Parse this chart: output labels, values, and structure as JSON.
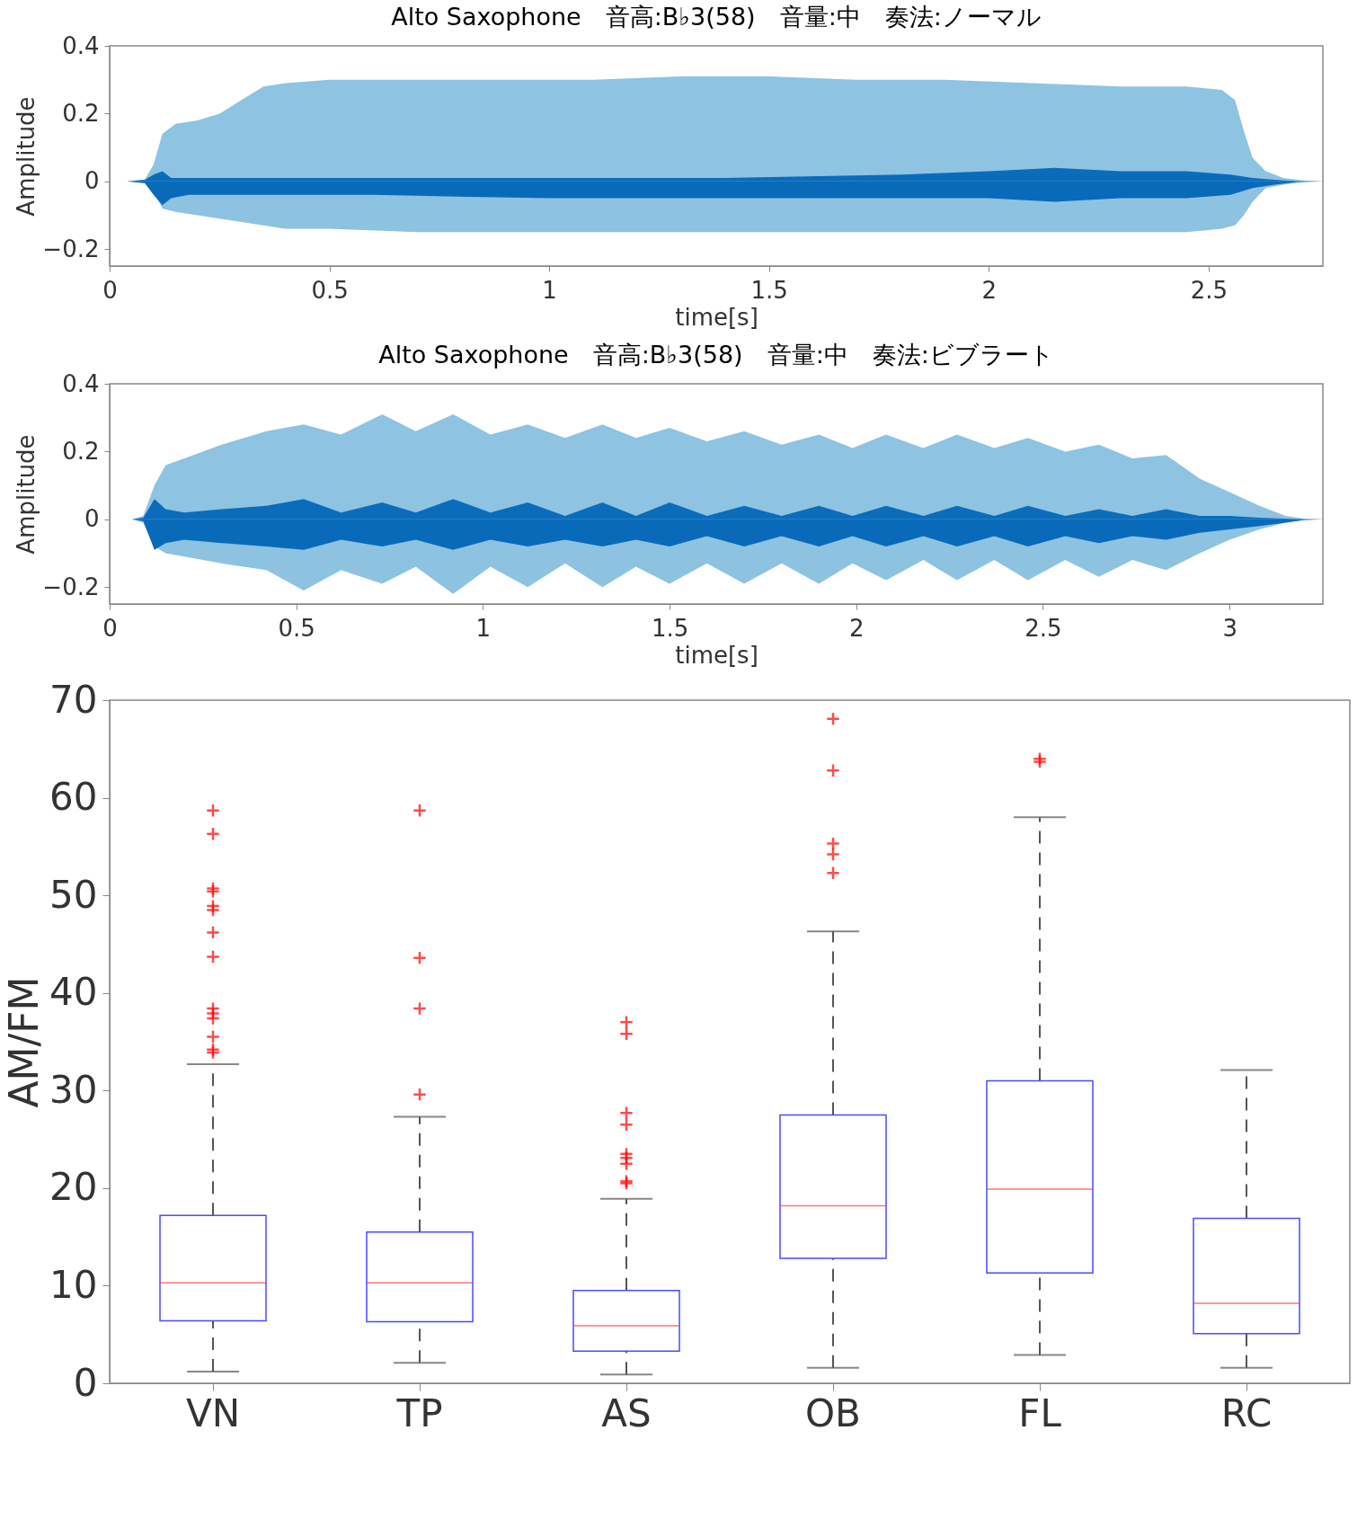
{
  "chart_data": [
    {
      "type": "area",
      "title": "Alto Saxophone　音高:B♭3(58)　音量:中　奏法:ノーマル",
      "xlabel": "time[s]",
      "ylabel": "Amplitude",
      "xlim": [
        0,
        2.76
      ],
      "xticks": [
        0,
        0.5,
        1,
        1.5,
        2,
        2.5
      ],
      "ylim": [
        -0.25,
        0.4
      ],
      "yticks": [
        -0.2,
        0,
        0.2,
        0.4
      ],
      "series": [
        {
          "color": "#8ec3e2",
          "x": [
            0,
            0.04,
            0.08,
            0.1,
            0.12,
            0.15,
            0.2,
            0.25,
            0.3,
            0.35,
            0.4,
            0.5,
            0.7,
            0.9,
            1.1,
            1.3,
            1.5,
            1.7,
            1.9,
            2.1,
            2.3,
            2.45,
            2.53,
            2.56,
            2.58,
            2.6,
            2.63,
            2.67,
            2.72,
            2.76
          ],
          "values": [
            0,
            0,
            0.005,
            0.05,
            0.14,
            0.17,
            0.18,
            0.2,
            0.24,
            0.28,
            0.29,
            0.3,
            0.3,
            0.3,
            0.3,
            0.31,
            0.31,
            0.3,
            0.3,
            0.29,
            0.28,
            0.28,
            0.27,
            0.24,
            0.15,
            0.07,
            0.03,
            0.01,
            0.002,
            0
          ]
        },
        {
          "color": "#8dc2e1",
          "x": [
            0,
            0.04,
            0.08,
            0.1,
            0.12,
            0.15,
            0.2,
            0.25,
            0.3,
            0.35,
            0.4,
            0.5,
            0.7,
            0.9,
            1.1,
            1.3,
            1.5,
            1.7,
            1.9,
            2.1,
            2.3,
            2.45,
            2.53,
            2.56,
            2.58,
            2.6,
            2.63,
            2.67,
            2.72,
            2.76
          ],
          "values": [
            0,
            0,
            -0.005,
            -0.03,
            -0.08,
            -0.09,
            -0.1,
            -0.11,
            -0.12,
            -0.13,
            -0.14,
            -0.14,
            -0.15,
            -0.15,
            -0.15,
            -0.15,
            -0.15,
            -0.15,
            -0.15,
            -0.15,
            -0.15,
            -0.15,
            -0.14,
            -0.13,
            -0.1,
            -0.06,
            -0.02,
            -0.01,
            -0.002,
            0
          ]
        },
        {
          "color": "#0b6cbb",
          "x": [
            0,
            0.04,
            0.08,
            0.1,
            0.12,
            0.14,
            0.18,
            0.3,
            0.6,
            1.0,
            1.4,
            1.8,
            2.0,
            2.15,
            2.3,
            2.45,
            2.55,
            2.6,
            2.65,
            2.7,
            2.76
          ],
          "values": [
            0,
            0,
            0.005,
            0.02,
            0.03,
            0.01,
            0.01,
            0.01,
            0.01,
            0.01,
            0.01,
            0.02,
            0.03,
            0.04,
            0.03,
            0.03,
            0.02,
            0.01,
            0.005,
            0.001,
            0
          ]
        },
        {
          "color": "#0a6aba",
          "x": [
            0,
            0.04,
            0.08,
            0.1,
            0.12,
            0.14,
            0.18,
            0.3,
            0.6,
            1.0,
            1.4,
            1.8,
            2.0,
            2.15,
            2.3,
            2.45,
            2.55,
            2.6,
            2.65,
            2.7,
            2.76
          ],
          "values": [
            0,
            0,
            -0.005,
            -0.04,
            -0.07,
            -0.05,
            -0.04,
            -0.04,
            -0.04,
            -0.05,
            -0.05,
            -0.05,
            -0.05,
            -0.06,
            -0.05,
            -0.05,
            -0.04,
            -0.02,
            -0.01,
            -0.002,
            0
          ]
        }
      ]
    },
    {
      "type": "area",
      "title": "Alto Saxophone　音高:B♭3(58)　音量:中　奏法:ビブラート",
      "xlabel": "time[s]",
      "ylabel": "Amplitude",
      "xlim": [
        0,
        3.25
      ],
      "xticks": [
        0,
        0.5,
        1,
        1.5,
        2,
        2.5,
        3
      ],
      "ylim": [
        -0.25,
        0.4
      ],
      "yticks": [
        -0.2,
        0,
        0.2,
        0.4
      ],
      "series": [
        {
          "color": "#8ec3e2",
          "x": [
            0,
            0.06,
            0.09,
            0.12,
            0.15,
            0.2,
            0.3,
            0.42,
            0.52,
            0.62,
            0.73,
            0.82,
            0.92,
            1.02,
            1.12,
            1.22,
            1.32,
            1.41,
            1.5,
            1.6,
            1.7,
            1.8,
            1.9,
            1.99,
            2.08,
            2.18,
            2.27,
            2.37,
            2.46,
            2.56,
            2.65,
            2.74,
            2.83,
            2.92,
            3.0,
            3.08,
            3.15,
            3.2,
            3.25
          ],
          "values": [
            0,
            0,
            0.01,
            0.1,
            0.16,
            0.18,
            0.22,
            0.26,
            0.28,
            0.25,
            0.31,
            0.26,
            0.31,
            0.25,
            0.28,
            0.24,
            0.28,
            0.24,
            0.27,
            0.23,
            0.26,
            0.22,
            0.25,
            0.21,
            0.25,
            0.21,
            0.25,
            0.21,
            0.24,
            0.2,
            0.22,
            0.18,
            0.19,
            0.12,
            0.08,
            0.04,
            0.01,
            0.002,
            0
          ]
        },
        {
          "color": "#8dc2e1",
          "x": [
            0,
            0.06,
            0.09,
            0.12,
            0.15,
            0.2,
            0.3,
            0.42,
            0.52,
            0.62,
            0.73,
            0.82,
            0.92,
            1.02,
            1.12,
            1.22,
            1.32,
            1.41,
            1.5,
            1.6,
            1.7,
            1.8,
            1.9,
            1.99,
            2.08,
            2.18,
            2.27,
            2.37,
            2.46,
            2.56,
            2.65,
            2.74,
            2.83,
            2.92,
            3.0,
            3.08,
            3.15,
            3.2,
            3.25
          ],
          "values": [
            0,
            0,
            -0.01,
            -0.08,
            -0.1,
            -0.11,
            -0.13,
            -0.15,
            -0.21,
            -0.15,
            -0.19,
            -0.14,
            -0.22,
            -0.14,
            -0.2,
            -0.13,
            -0.2,
            -0.14,
            -0.19,
            -0.13,
            -0.19,
            -0.13,
            -0.19,
            -0.13,
            -0.18,
            -0.12,
            -0.18,
            -0.12,
            -0.18,
            -0.12,
            -0.17,
            -0.12,
            -0.15,
            -0.1,
            -0.06,
            -0.03,
            -0.01,
            -0.002,
            0
          ]
        },
        {
          "color": "#0b6cbb",
          "x": [
            0,
            0.06,
            0.09,
            0.12,
            0.15,
            0.2,
            0.3,
            0.42,
            0.52,
            0.62,
            0.73,
            0.82,
            0.92,
            1.02,
            1.12,
            1.22,
            1.32,
            1.41,
            1.5,
            1.6,
            1.7,
            1.8,
            1.9,
            1.99,
            2.08,
            2.18,
            2.27,
            2.37,
            2.46,
            2.56,
            2.65,
            2.74,
            2.83,
            2.92,
            3.0,
            3.08,
            3.15,
            3.2,
            3.25
          ],
          "values": [
            0,
            0,
            0.005,
            0.06,
            0.03,
            0.02,
            0.03,
            0.04,
            0.06,
            0.02,
            0.05,
            0.02,
            0.06,
            0.02,
            0.05,
            0.01,
            0.05,
            0.01,
            0.05,
            0.01,
            0.04,
            0.01,
            0.04,
            0.01,
            0.04,
            0.01,
            0.04,
            0.01,
            0.04,
            0.01,
            0.03,
            0.01,
            0.03,
            0.01,
            0.01,
            0.005,
            0.002,
            0,
            0
          ]
        },
        {
          "color": "#0a6aba",
          "x": [
            0,
            0.06,
            0.09,
            0.12,
            0.15,
            0.2,
            0.3,
            0.42,
            0.52,
            0.62,
            0.73,
            0.82,
            0.92,
            1.02,
            1.12,
            1.22,
            1.32,
            1.41,
            1.5,
            1.6,
            1.7,
            1.8,
            1.9,
            1.99,
            2.08,
            2.18,
            2.27,
            2.37,
            2.46,
            2.56,
            2.65,
            2.74,
            2.83,
            2.92,
            3.0,
            3.08,
            3.15,
            3.2,
            3.25
          ],
          "values": [
            0,
            0,
            -0.005,
            -0.09,
            -0.07,
            -0.06,
            -0.07,
            -0.08,
            -0.09,
            -0.06,
            -0.08,
            -0.06,
            -0.09,
            -0.06,
            -0.08,
            -0.06,
            -0.08,
            -0.06,
            -0.08,
            -0.05,
            -0.08,
            -0.05,
            -0.08,
            -0.05,
            -0.08,
            -0.05,
            -0.08,
            -0.05,
            -0.08,
            -0.05,
            -0.07,
            -0.05,
            -0.06,
            -0.04,
            -0.03,
            -0.02,
            -0.01,
            -0.002,
            0
          ]
        }
      ]
    },
    {
      "type": "box",
      "ylabel": "AM/FM",
      "categories": [
        "VN",
        "TP",
        "AS",
        "OB",
        "FL",
        "RC"
      ],
      "ylim": [
        0,
        70
      ],
      "yticks": [
        0,
        10,
        20,
        30,
        40,
        50,
        60,
        70
      ],
      "boxes": [
        {
          "low": 1.2,
          "q1": 6.4,
          "median": 10.3,
          "q3": 17.2,
          "high": 32.7,
          "outliers": [
            58.7,
            56.3,
            50.7,
            50.4,
            48.9,
            48.5,
            46.2,
            43.7,
            38.4,
            37.9,
            37.4,
            35.5,
            34.2,
            33.9
          ]
        },
        {
          "low": 2.1,
          "q1": 6.3,
          "median": 10.3,
          "q3": 15.5,
          "high": 27.3,
          "outliers": [
            58.7,
            43.6,
            38.4,
            29.6
          ]
        },
        {
          "low": 0.9,
          "q1": 3.3,
          "median": 5.9,
          "q3": 9.5,
          "high": 18.9,
          "outliers": [
            37.0,
            35.8,
            27.7,
            26.5,
            23.5,
            23.1,
            22.5,
            20.7,
            20.5
          ]
        },
        {
          "low": 1.6,
          "q1": 12.8,
          "median": 18.2,
          "q3": 27.5,
          "high": 46.3,
          "outliers": [
            68.1,
            62.8,
            55.3,
            54.2,
            52.3
          ]
        },
        {
          "low": 2.9,
          "q1": 11.3,
          "median": 19.9,
          "q3": 31.0,
          "high": 58.0,
          "outliers": [
            64.0,
            63.7
          ]
        },
        {
          "low": 1.6,
          "q1": 5.1,
          "median": 8.2,
          "q3": 16.9,
          "high": 32.1
        }
      ]
    }
  ]
}
